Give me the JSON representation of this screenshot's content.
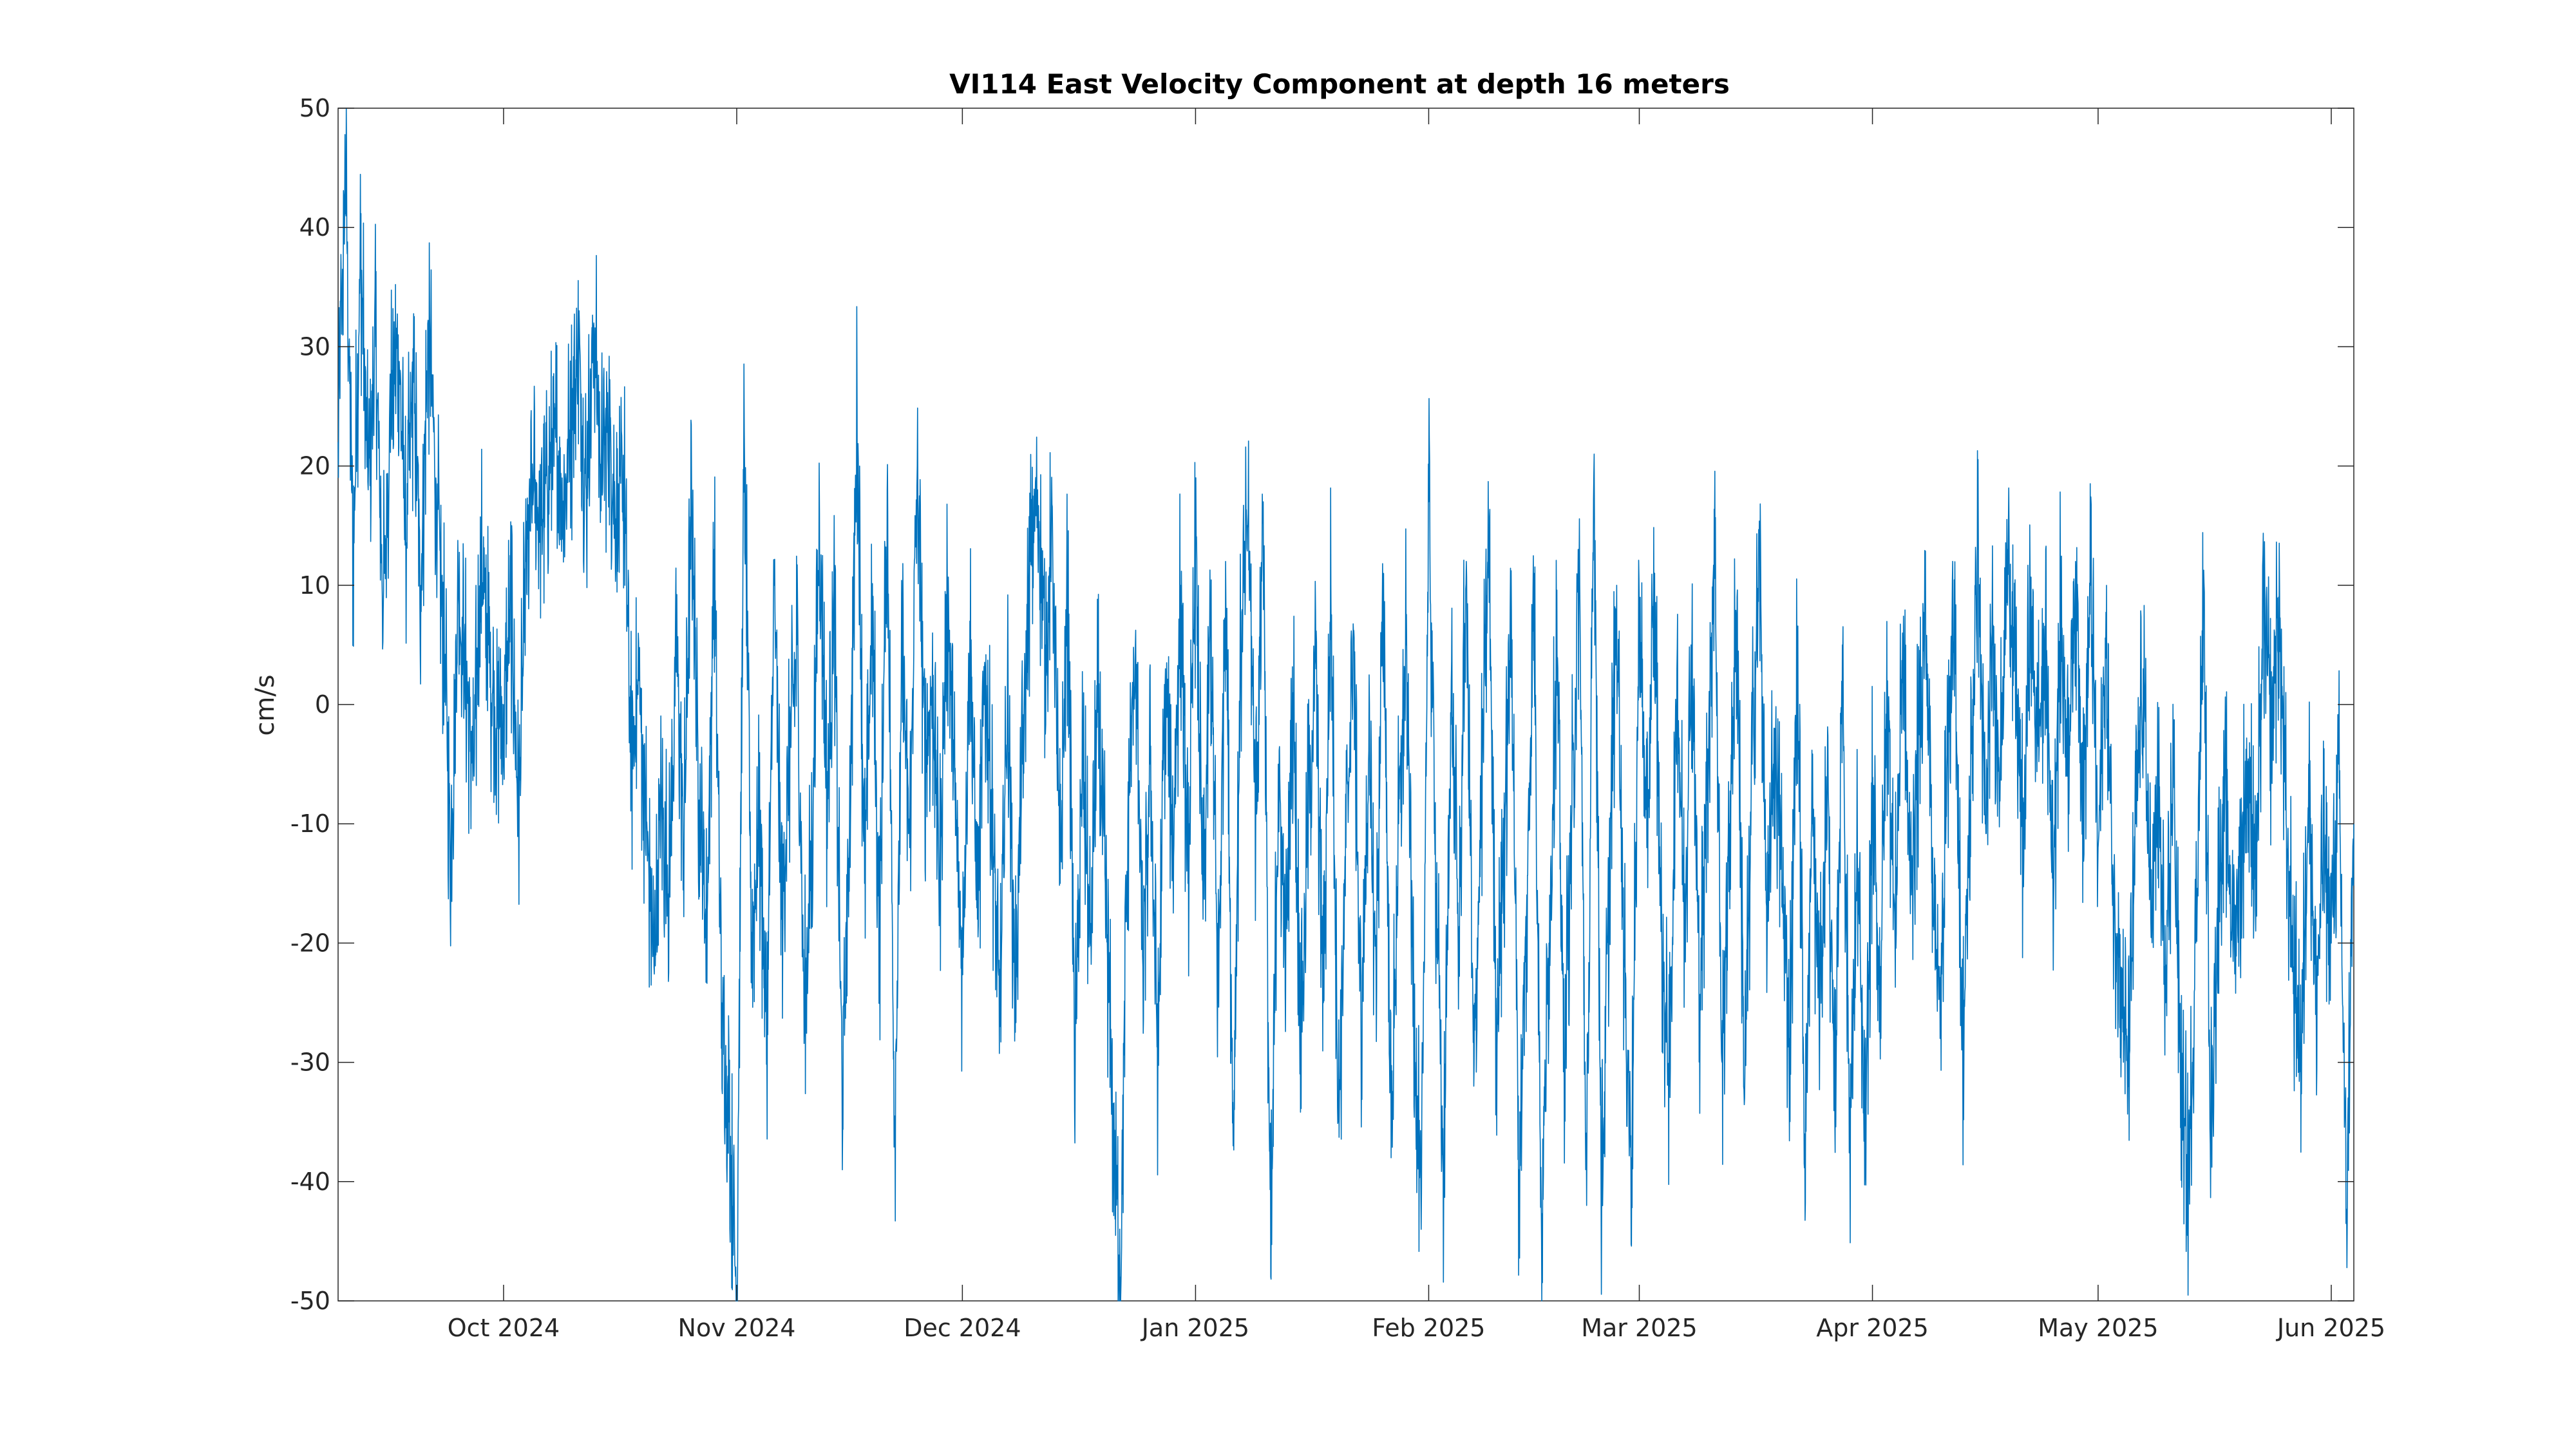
{
  "chart_data": {
    "type": "line",
    "title": "VI114 East Velocity Component at depth 16 meters",
    "xlabel": "",
    "ylabel": "cm/s",
    "ylim": [
      -50,
      50
    ],
    "xlim": [
      "2024-09-09",
      "2025-06-04"
    ],
    "grid": false,
    "x_ticks": [
      {
        "date": "2024-10-01",
        "label": "Oct 2024"
      },
      {
        "date": "2024-11-01",
        "label": "Nov 2024"
      },
      {
        "date": "2024-12-01",
        "label": "Dec 2024"
      },
      {
        "date": "2025-01-01",
        "label": "Jan 2025"
      },
      {
        "date": "2025-02-01",
        "label": "Feb 2025"
      },
      {
        "date": "2025-03-01",
        "label": "Mar 2025"
      },
      {
        "date": "2025-04-01",
        "label": "Apr 2025"
      },
      {
        "date": "2025-05-01",
        "label": "May 2025"
      },
      {
        "date": "2025-06-01",
        "label": "Jun 2025"
      }
    ],
    "y_ticks": [
      {
        "value": 50,
        "label": "50"
      },
      {
        "value": 40,
        "label": "40"
      },
      {
        "value": 30,
        "label": "30"
      },
      {
        "value": 20,
        "label": "20"
      },
      {
        "value": 10,
        "label": "10"
      },
      {
        "value": 0,
        "label": "0"
      },
      {
        "value": -10,
        "label": "-10"
      },
      {
        "value": -20,
        "label": "-20"
      },
      {
        "value": -30,
        "label": "-30"
      },
      {
        "value": -40,
        "label": "-40"
      },
      {
        "value": -50,
        "label": "-50"
      }
    ],
    "series": [
      {
        "color": "#0072bd",
        "sampling": "hourly",
        "points": [
          [
            "2024-09-09",
            22
          ],
          [
            "2024-09-10",
            45
          ],
          [
            "2024-09-11",
            12
          ],
          [
            "2024-09-12",
            38
          ],
          [
            "2024-09-13",
            18
          ],
          [
            "2024-09-14",
            30
          ],
          [
            "2024-09-15",
            8
          ],
          [
            "2024-09-16",
            25
          ],
          [
            "2024-09-17",
            31
          ],
          [
            "2024-09-18",
            14
          ],
          [
            "2024-09-19",
            27
          ],
          [
            "2024-09-20",
            10
          ],
          [
            "2024-09-21",
            32
          ],
          [
            "2024-09-22",
            19
          ],
          [
            "2024-09-23",
            6
          ],
          [
            "2024-09-24",
            -12
          ],
          [
            "2024-09-25",
            9
          ],
          [
            "2024-09-26",
            2
          ],
          [
            "2024-09-27",
            -5
          ],
          [
            "2024-09-28",
            12
          ],
          [
            "2024-09-29",
            5
          ],
          [
            "2024-09-30",
            -2
          ],
          [
            "2024-10-01",
            0
          ],
          [
            "2024-10-02",
            8
          ],
          [
            "2024-10-03",
            -10
          ],
          [
            "2024-10-04",
            12
          ],
          [
            "2024-10-05",
            18
          ],
          [
            "2024-10-06",
            15
          ],
          [
            "2024-10-07",
            20
          ],
          [
            "2024-10-08",
            22
          ],
          [
            "2024-10-09",
            17
          ],
          [
            "2024-10-10",
            24
          ],
          [
            "2024-10-11",
            29
          ],
          [
            "2024-10-12",
            18
          ],
          [
            "2024-10-13",
            32
          ],
          [
            "2024-10-14",
            20
          ],
          [
            "2024-10-15",
            24
          ],
          [
            "2024-10-16",
            15
          ],
          [
            "2024-10-17",
            19
          ],
          [
            "2024-10-18",
            -5
          ],
          [
            "2024-10-19",
            2
          ],
          [
            "2024-10-20",
            -10
          ],
          [
            "2024-10-21",
            -22
          ],
          [
            "2024-10-22",
            -8
          ],
          [
            "2024-10-23",
            -15
          ],
          [
            "2024-10-24",
            5
          ],
          [
            "2024-10-25",
            -12
          ],
          [
            "2024-10-26",
            18
          ],
          [
            "2024-10-27",
            -8
          ],
          [
            "2024-10-28",
            -20
          ],
          [
            "2024-10-29",
            13
          ],
          [
            "2024-10-30",
            -25
          ],
          [
            "2024-10-31",
            -35
          ],
          [
            "2024-11-01",
            -50
          ],
          [
            "2024-11-02",
            23
          ],
          [
            "2024-11-03",
            -20
          ],
          [
            "2024-11-04",
            -10
          ],
          [
            "2024-11-05",
            -28
          ],
          [
            "2024-11-06",
            10
          ],
          [
            "2024-11-07",
            -18
          ],
          [
            "2024-11-08",
            -5
          ],
          [
            "2024-11-09",
            5
          ],
          [
            "2024-11-10",
            -26
          ],
          [
            "2024-11-11",
            -12
          ],
          [
            "2024-11-12",
            16
          ],
          [
            "2024-11-13",
            -8
          ],
          [
            "2024-11-14",
            8
          ],
          [
            "2024-11-15",
            -32
          ],
          [
            "2024-11-16",
            -10
          ],
          [
            "2024-11-17",
            25
          ],
          [
            "2024-11-18",
            -15
          ],
          [
            "2024-11-19",
            9
          ],
          [
            "2024-11-20",
            -20
          ],
          [
            "2024-11-21",
            18
          ],
          [
            "2024-11-22",
            -36
          ],
          [
            "2024-11-23",
            4
          ],
          [
            "2024-11-24",
            -12
          ],
          [
            "2024-11-25",
            20
          ],
          [
            "2024-11-26",
            -5
          ],
          [
            "2024-11-27",
            2
          ],
          [
            "2024-11-28",
            -14
          ],
          [
            "2024-11-29",
            10
          ],
          [
            "2024-11-30",
            -8
          ],
          [
            "2024-12-01",
            -22
          ],
          [
            "2024-12-02",
            7
          ],
          [
            "2024-12-03",
            -18
          ],
          [
            "2024-12-04",
            3
          ],
          [
            "2024-12-05",
            -10
          ],
          [
            "2024-12-06",
            -27
          ],
          [
            "2024-12-07",
            2
          ],
          [
            "2024-12-08",
            -23
          ],
          [
            "2024-12-09",
            -5
          ],
          [
            "2024-12-10",
            12
          ],
          [
            "2024-12-11",
            18
          ],
          [
            "2024-12-12",
            5
          ],
          [
            "2024-12-13",
            14
          ],
          [
            "2024-12-14",
            -15
          ],
          [
            "2024-12-15",
            10
          ],
          [
            "2024-12-16",
            -30
          ],
          [
            "2024-12-17",
            -5
          ],
          [
            "2024-12-18",
            -20
          ],
          [
            "2024-12-19",
            0
          ],
          [
            "2024-12-20",
            -15
          ],
          [
            "2024-12-21",
            -35
          ],
          [
            "2024-12-22",
            -48
          ],
          [
            "2024-12-23",
            -10
          ],
          [
            "2024-12-24",
            5
          ],
          [
            "2024-12-25",
            -22
          ],
          [
            "2024-12-26",
            -5
          ],
          [
            "2024-12-27",
            -30
          ],
          [
            "2024-12-28",
            3
          ],
          [
            "2024-12-29",
            -12
          ],
          [
            "2024-12-30",
            10
          ],
          [
            "2024-12-31",
            -15
          ],
          [
            "2025-01-01",
            13
          ],
          [
            "2025-01-02",
            -18
          ],
          [
            "2025-01-03",
            7
          ],
          [
            "2025-01-04",
            -25
          ],
          [
            "2025-01-05",
            12
          ],
          [
            "2025-01-06",
            -37
          ],
          [
            "2025-01-07",
            4
          ],
          [
            "2025-01-08",
            16
          ],
          [
            "2025-01-09",
            -10
          ],
          [
            "2025-01-10",
            17
          ],
          [
            "2025-01-11",
            -48
          ],
          [
            "2025-01-12",
            -5
          ],
          [
            "2025-01-13",
            -20
          ],
          [
            "2025-01-14",
            1
          ],
          [
            "2025-01-15",
            -28
          ],
          [
            "2025-01-16",
            -8
          ],
          [
            "2025-01-17",
            3
          ],
          [
            "2025-01-18",
            -25
          ],
          [
            "2025-01-19",
            10
          ],
          [
            "2025-01-20",
            -35
          ],
          [
            "2025-01-21",
            -12
          ],
          [
            "2025-01-22",
            6
          ],
          [
            "2025-01-23",
            -28
          ],
          [
            "2025-01-24",
            -5
          ],
          [
            "2025-01-25",
            -22
          ],
          [
            "2025-01-26",
            11
          ],
          [
            "2025-01-27",
            -38
          ],
          [
            "2025-01-28",
            -10
          ],
          [
            "2025-01-29",
            5
          ],
          [
            "2025-01-30",
            -25
          ],
          [
            "2025-01-31",
            -44
          ],
          [
            "2025-02-01",
            17
          ],
          [
            "2025-02-02",
            -15
          ],
          [
            "2025-02-03",
            -41
          ],
          [
            "2025-02-04",
            2
          ],
          [
            "2025-02-05",
            -20
          ],
          [
            "2025-02-06",
            12
          ],
          [
            "2025-02-07",
            -32
          ],
          [
            "2025-02-08",
            -8
          ],
          [
            "2025-02-09",
            14
          ],
          [
            "2025-02-10",
            -28
          ],
          [
            "2025-02-11",
            -12
          ],
          [
            "2025-02-12",
            8
          ],
          [
            "2025-02-13",
            -39
          ],
          [
            "2025-02-14",
            -18
          ],
          [
            "2025-02-15",
            11
          ],
          [
            "2025-02-16",
            -45
          ],
          [
            "2025-02-17",
            -20
          ],
          [
            "2025-02-18",
            5
          ],
          [
            "2025-02-19",
            -30
          ],
          [
            "2025-02-20",
            -10
          ],
          [
            "2025-02-21",
            12
          ],
          [
            "2025-02-22",
            -42
          ],
          [
            "2025-02-23",
            21
          ],
          [
            "2025-02-24",
            -42
          ],
          [
            "2025-02-25",
            -15
          ],
          [
            "2025-02-26",
            10
          ],
          [
            "2025-02-27",
            -22
          ],
          [
            "2025-02-28",
            -38
          ],
          [
            "2025-03-01",
            8
          ],
          [
            "2025-03-02",
            -12
          ],
          [
            "2025-03-03",
            10
          ],
          [
            "2025-03-04",
            -20
          ],
          [
            "2025-03-05",
            -32
          ],
          [
            "2025-03-06",
            3
          ],
          [
            "2025-03-07",
            -18
          ],
          [
            "2025-03-08",
            5
          ],
          [
            "2025-03-09",
            -25
          ],
          [
            "2025-03-10",
            -8
          ],
          [
            "2025-03-11",
            15
          ],
          [
            "2025-03-12",
            -30
          ],
          [
            "2025-03-13",
            -10
          ],
          [
            "2025-03-14",
            9
          ],
          [
            "2025-03-15",
            -33
          ],
          [
            "2025-03-16",
            -5
          ],
          [
            "2025-03-17",
            12
          ],
          [
            "2025-03-18",
            -20
          ],
          [
            "2025-03-19",
            -2
          ],
          [
            "2025-03-20",
            -15
          ],
          [
            "2025-03-21",
            -28
          ],
          [
            "2025-03-22",
            4
          ],
          [
            "2025-03-23",
            -36
          ],
          [
            "2025-03-24",
            -10
          ],
          [
            "2025-03-25",
            -25
          ],
          [
            "2025-03-26",
            -5
          ],
          [
            "2025-03-27",
            -35
          ],
          [
            "2025-03-28",
            5
          ],
          [
            "2025-03-29",
            -37
          ],
          [
            "2025-03-30",
            -12
          ],
          [
            "2025-03-31",
            -39
          ],
          [
            "2025-04-01",
            -8
          ],
          [
            "2025-04-02",
            -25
          ],
          [
            "2025-04-03",
            2
          ],
          [
            "2025-04-04",
            -20
          ],
          [
            "2025-04-05",
            6
          ],
          [
            "2025-04-06",
            -15
          ],
          [
            "2025-04-07",
            -5
          ],
          [
            "2025-04-08",
            8
          ],
          [
            "2025-04-09",
            -12
          ],
          [
            "2025-04-10",
            -28
          ],
          [
            "2025-04-11",
            -2
          ],
          [
            "2025-04-12",
            5
          ],
          [
            "2025-04-13",
            -30
          ],
          [
            "2025-04-14",
            -8
          ],
          [
            "2025-04-15",
            13
          ],
          [
            "2025-04-16",
            -10
          ],
          [
            "2025-04-17",
            5
          ],
          [
            "2025-04-18",
            -5
          ],
          [
            "2025-04-19",
            13
          ],
          [
            "2025-04-20",
            2
          ],
          [
            "2025-04-21",
            -12
          ],
          [
            "2025-04-22",
            8
          ],
          [
            "2025-04-23",
            -3
          ],
          [
            "2025-04-24",
            5
          ],
          [
            "2025-04-25",
            -15
          ],
          [
            "2025-04-26",
            8
          ],
          [
            "2025-04-27",
            -5
          ],
          [
            "2025-04-28",
            12
          ],
          [
            "2025-04-29",
            -8
          ],
          [
            "2025-04-30",
            10
          ],
          [
            "2025-05-01",
            -12
          ],
          [
            "2025-05-02",
            4
          ],
          [
            "2025-05-03",
            -15
          ],
          [
            "2025-05-04",
            -22
          ],
          [
            "2025-05-05",
            -32
          ],
          [
            "2025-05-06",
            -10
          ],
          [
            "2025-05-07",
            3
          ],
          [
            "2025-05-08",
            -18
          ],
          [
            "2025-05-09",
            -8
          ],
          [
            "2025-05-10",
            -25
          ],
          [
            "2025-05-11",
            -5
          ],
          [
            "2025-05-12",
            -32
          ],
          [
            "2025-05-13",
            -41
          ],
          [
            "2025-05-14",
            -20
          ],
          [
            "2025-05-15",
            8
          ],
          [
            "2025-05-16",
            -35
          ],
          [
            "2025-05-17",
            -15
          ],
          [
            "2025-05-18",
            -8
          ],
          [
            "2025-05-19",
            -20
          ],
          [
            "2025-05-20",
            -12
          ],
          [
            "2025-05-21",
            -5
          ],
          [
            "2025-05-22",
            -14
          ],
          [
            "2025-05-23",
            8
          ],
          [
            "2025-05-24",
            -2
          ],
          [
            "2025-05-25",
            9
          ],
          [
            "2025-05-26",
            -10
          ],
          [
            "2025-05-27",
            -22
          ],
          [
            "2025-05-28",
            -30
          ],
          [
            "2025-05-29",
            -5
          ],
          [
            "2025-05-30",
            -25
          ],
          [
            "2025-05-31",
            -12
          ],
          [
            "2025-06-01",
            -20
          ],
          [
            "2025-06-02",
            -5
          ],
          [
            "2025-06-03",
            -43
          ],
          [
            "2025-06-04",
            -10
          ]
        ]
      }
    ]
  }
}
